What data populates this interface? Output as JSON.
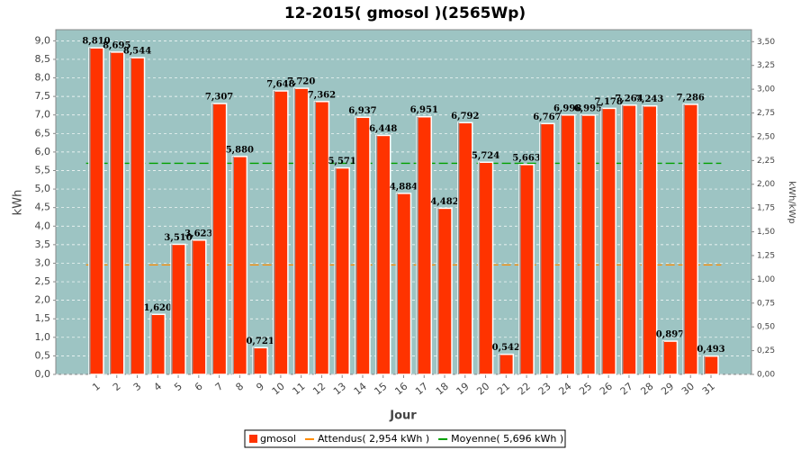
{
  "chart_data": {
    "type": "bar",
    "title": "12-2015( gmosol )(2565Wp)",
    "x_label": "Jour",
    "y_label": "kWh",
    "y2_label": "kWh/kWp",
    "categories": [
      "1",
      "2",
      "3",
      "4",
      "5",
      "6",
      "7",
      "8",
      "9",
      "10",
      "11",
      "12",
      "13",
      "14",
      "15",
      "16",
      "17",
      "18",
      "19",
      "20",
      "21",
      "22",
      "23",
      "24",
      "25",
      "26",
      "27",
      "28",
      "29",
      "30",
      "31"
    ],
    "series": [
      {
        "name": "gmosol",
        "color": "#ff3300",
        "values": [
          8.81,
          8.695,
          8.544,
          1.62,
          3.51,
          3.623,
          7.307,
          5.88,
          0.721,
          7.648,
          7.72,
          7.362,
          5.571,
          6.937,
          6.448,
          4.884,
          6.951,
          4.482,
          6.792,
          5.724,
          0.542,
          5.663,
          6.767,
          6.998,
          6.995,
          7.178,
          7.264,
          7.243,
          0.897,
          7.286,
          0.493
        ],
        "value_labels": [
          "8,810",
          "8,695",
          "8,544",
          "1,620",
          "3,510",
          "3,623",
          "7,307",
          "5,880",
          "0,721",
          "7,648",
          "7,720",
          "7,362",
          "5,571",
          "6,937",
          "6,448",
          "4,884",
          "6,951",
          "4,482",
          "6,792",
          "5,724",
          "0,542",
          "5,663",
          "6,767",
          "6,998",
          "6,995",
          "7,178",
          "7,264",
          "7,243",
          "0,897",
          "7,286",
          "0,493"
        ]
      }
    ],
    "reference_lines": [
      {
        "name": "Attendus( 2,954 kWh )",
        "value": 2.954,
        "color": "#ff8c00"
      },
      {
        "name": "Moyenne( 5,696 kWh )",
        "value": 5.696,
        "color": "#00a000"
      }
    ],
    "ylim": [
      0,
      9.3
    ],
    "yticks": [
      {
        "value": 0,
        "label": "0,0"
      },
      {
        "value": 0.5,
        "label": "0,5"
      },
      {
        "value": 1,
        "label": "1,0"
      },
      {
        "value": 1.5,
        "label": "1,5"
      },
      {
        "value": 2,
        "label": "2,0"
      },
      {
        "value": 2.5,
        "label": "2,5"
      },
      {
        "value": 3,
        "label": "3,0"
      },
      {
        "value": 3.5,
        "label": "3,5"
      },
      {
        "value": 4,
        "label": "4,0"
      },
      {
        "value": 4.5,
        "label": "4,5"
      },
      {
        "value": 5,
        "label": "5,0"
      },
      {
        "value": 5.5,
        "label": "5,5"
      },
      {
        "value": 6,
        "label": "6,0"
      },
      {
        "value": 6.5,
        "label": "6,5"
      },
      {
        "value": 7,
        "label": "7,0"
      },
      {
        "value": 7.5,
        "label": "7,5"
      },
      {
        "value": 8,
        "label": "8,0"
      },
      {
        "value": 8.5,
        "label": "8,5"
      },
      {
        "value": 9,
        "label": "9,0"
      }
    ],
    "y2lim": [
      0,
      3.626
    ],
    "y2ticks": [
      {
        "value": 0,
        "label": "0,00"
      },
      {
        "value": 0.25,
        "label": "0,25"
      },
      {
        "value": 0.5,
        "label": "0,50"
      },
      {
        "value": 0.75,
        "label": "0,75"
      },
      {
        "value": 1,
        "label": "1,00"
      },
      {
        "value": 1.25,
        "label": "1,25"
      },
      {
        "value": 1.5,
        "label": "1,50"
      },
      {
        "value": 1.75,
        "label": "1,75"
      },
      {
        "value": 2,
        "label": "2,00"
      },
      {
        "value": 2.25,
        "label": "2,25"
      },
      {
        "value": 2.5,
        "label": "2,50"
      },
      {
        "value": 2.75,
        "label": "2,75"
      },
      {
        "value": 3,
        "label": "3,00"
      },
      {
        "value": 3.25,
        "label": "3,25"
      },
      {
        "value": 3.5,
        "label": "3,50"
      }
    ],
    "grid": true
  }
}
